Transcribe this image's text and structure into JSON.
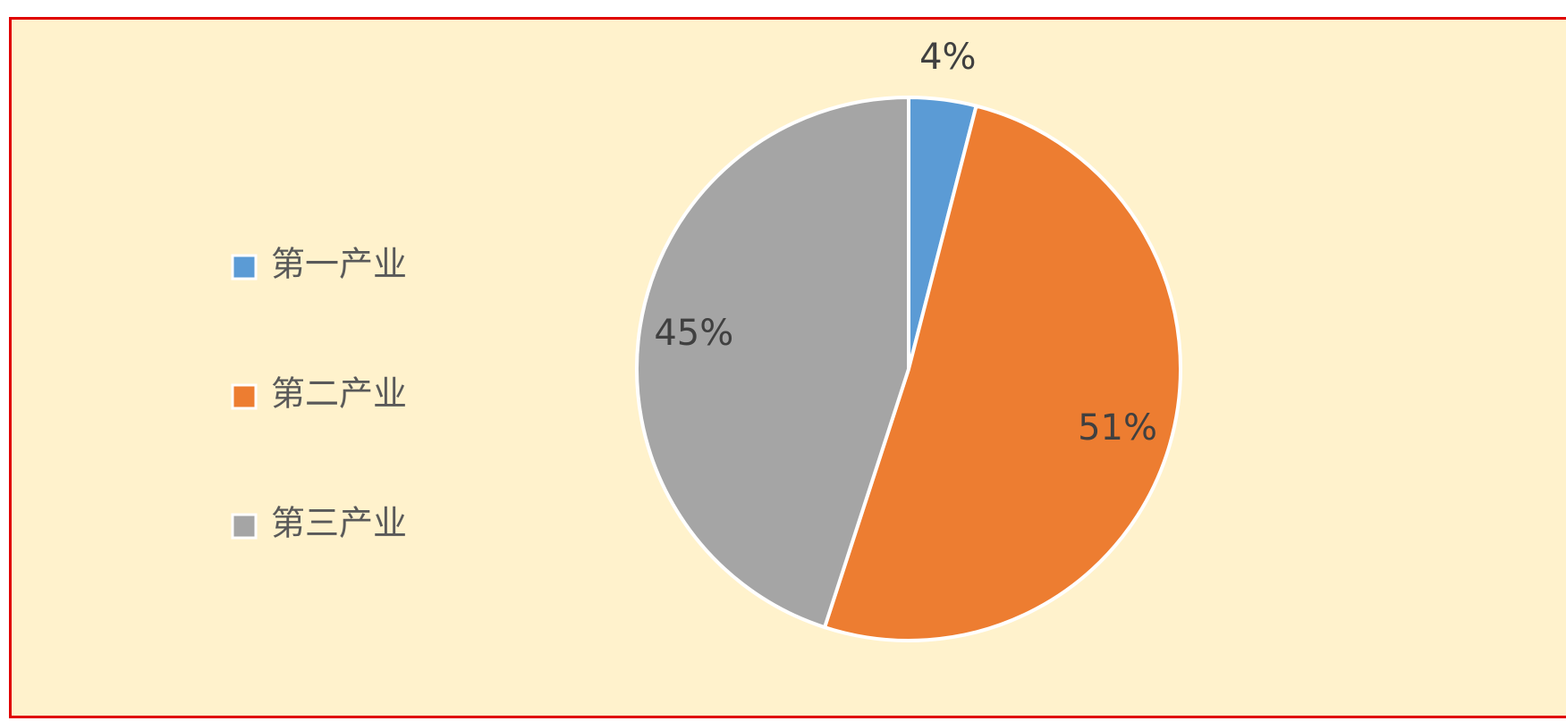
{
  "chart_data": {
    "type": "pie",
    "categories": [
      "第一产业",
      "第二产业",
      "第三产业"
    ],
    "values": [
      4,
      51,
      45
    ],
    "value_labels": [
      "4%",
      "51%",
      "45%"
    ],
    "colors": [
      "#5b9bd5",
      "#ed7d31",
      "#a5a5a5"
    ],
    "legend": "left"
  }
}
